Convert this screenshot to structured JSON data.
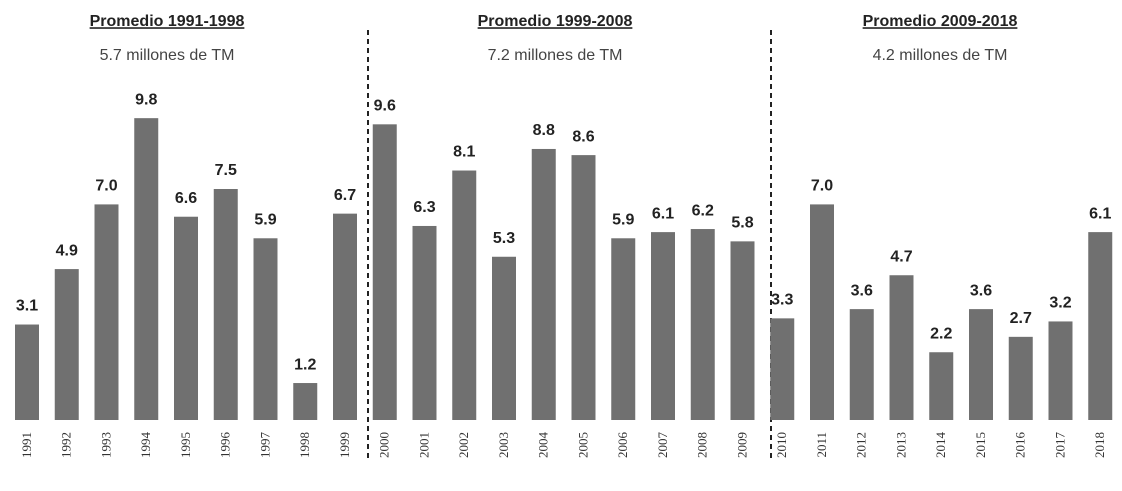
{
  "chart_data": {
    "type": "bar",
    "categories": [
      "1991",
      "1992",
      "1993",
      "1994",
      "1995",
      "1996",
      "1997",
      "1998",
      "1999",
      "2000",
      "2001",
      "2002",
      "2003",
      "2004",
      "2005",
      "2006",
      "2007",
      "2008",
      "2009",
      "2010",
      "2011",
      "2012",
      "2013",
      "2014",
      "2015",
      "2016",
      "2017",
      "2018"
    ],
    "values": [
      3.1,
      4.9,
      7.0,
      9.8,
      6.6,
      7.5,
      5.9,
      1.2,
      6.7,
      9.6,
      6.3,
      8.1,
      5.3,
      8.8,
      8.6,
      5.9,
      6.1,
      6.2,
      5.8,
      3.3,
      7.0,
      3.6,
      4.7,
      2.2,
      3.6,
      2.7,
      3.2,
      6.1
    ],
    "value_labels": [
      "3.1",
      "4.9",
      "7.0",
      "9.8",
      "6.6",
      "7.5",
      "5.9",
      "1.2",
      "6.7",
      "9.6",
      "6.3",
      "8.1",
      "5.3",
      "8.8",
      "8.6",
      "5.9",
      "6.1",
      "6.2",
      "5.8",
      "3.3",
      "7.0",
      "3.6",
      "4.7",
      "2.2",
      "3.6",
      "2.7",
      "3.2",
      "6.1"
    ],
    "color": "#707070",
    "annotations": [
      {
        "title": "Promedio 1991-1998",
        "subtitle": "5.7 millones de TM"
      },
      {
        "title": "Promedio 1999-2008",
        "subtitle": "7.2 millones de TM"
      },
      {
        "title": "Promedio 2009-2018",
        "subtitle": "4.2 millones de TM"
      }
    ]
  }
}
